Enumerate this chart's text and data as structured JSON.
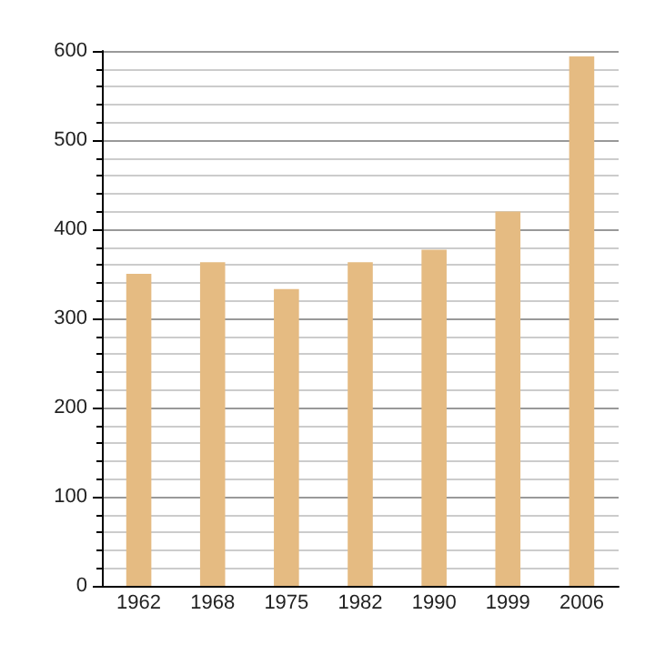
{
  "chart_data": {
    "type": "bar",
    "categories": [
      "1962",
      "1968",
      "1975",
      "1982",
      "1990",
      "1999",
      "2006"
    ],
    "values": [
      350,
      363,
      333,
      363,
      377,
      420,
      594
    ],
    "color": "#e5bb82",
    "ylim": [
      0,
      600
    ],
    "yticks": [
      0,
      100,
      200,
      300,
      400,
      500,
      600
    ],
    "grid": "y"
  }
}
